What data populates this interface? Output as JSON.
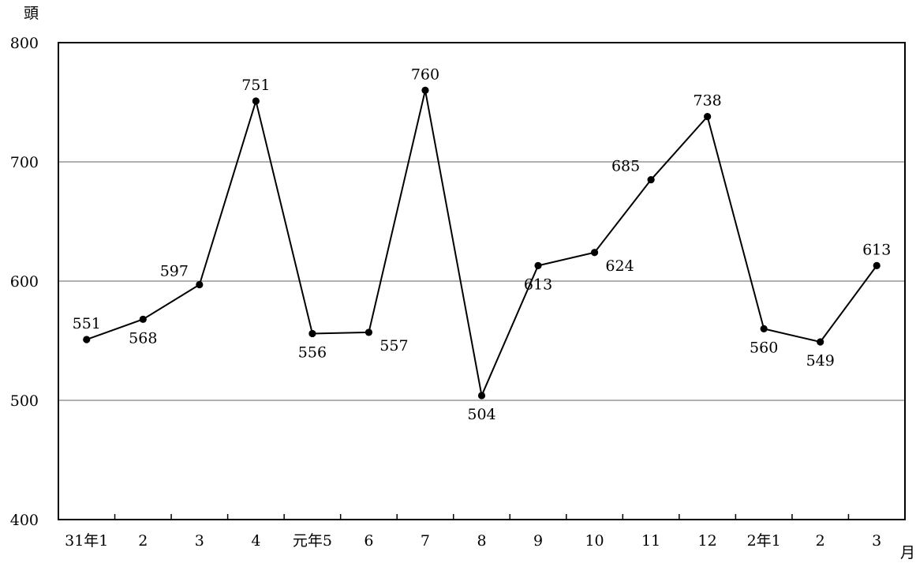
{
  "chart_data": {
    "type": "line",
    "y_unit": "頭",
    "x_unit": "月",
    "categories": [
      "31年1",
      "2",
      "3",
      "4",
      "元年5",
      "6",
      "7",
      "8",
      "9",
      "10",
      "11",
      "12",
      "2年1",
      "2",
      "3"
    ],
    "series": [
      {
        "values": [
          551,
          568,
          597,
          751,
          556,
          557,
          760,
          504,
          613,
          624,
          685,
          738,
          560,
          549,
          613
        ]
      }
    ],
    "ylim": [
      400,
      800
    ],
    "yticks": [
      400,
      500,
      600,
      700,
      800
    ],
    "grid": true,
    "colors": {
      "line": "#000000",
      "grid": "#808080",
      "frame": "#000000"
    }
  }
}
